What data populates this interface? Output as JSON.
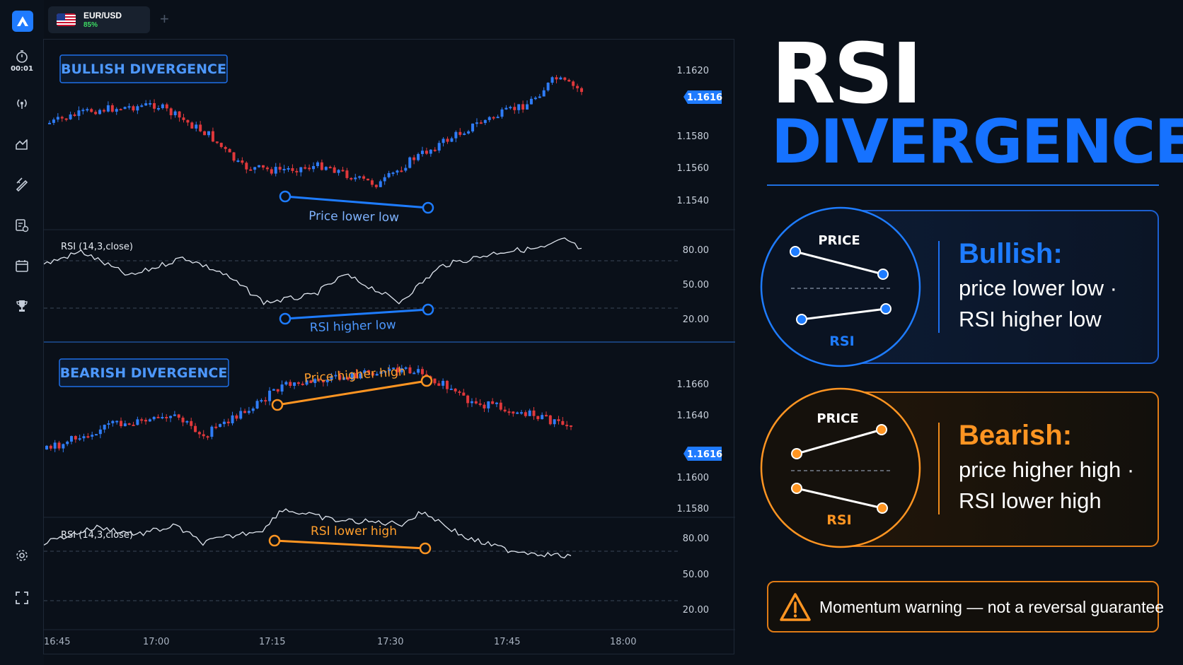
{
  "app": {
    "timer": "00:01",
    "tab": {
      "asset": "EUR/USD",
      "payout": "85%",
      "add_label": "+"
    }
  },
  "colors": {
    "bull": "#1e7cff",
    "bear": "#ff9522",
    "candle_up": "#2f7cf6",
    "candle_down": "#e0383b"
  },
  "chart": {
    "time_labels": [
      "16:45",
      "17:00",
      "17:15",
      "17:30",
      "17:45",
      "18:00"
    ],
    "bull_pane": {
      "badge": "BULLISH DIVERGENCE",
      "price_ticks": [
        "1.1620",
        "1.1580",
        "1.1560",
        "1.1540"
      ],
      "current_price": "1.1616",
      "price_annotation": "Price lower low",
      "rsi_label": "RSI (14,3,close)",
      "rsi_ticks": [
        "80.00",
        "50.00",
        "20.00"
      ],
      "rsi_annotation": "RSI higher low"
    },
    "bear_pane": {
      "badge": "BEARISH DIVERGENCE",
      "price_ticks": [
        "1.1660",
        "1.1640",
        "1.1600",
        "1.1580"
      ],
      "current_price": "1.1616",
      "price_annotation": "Price higher high",
      "rsi_label": "RSI (14,3,close)",
      "rsi_ticks": [
        "80.00",
        "50.00",
        "20.00"
      ],
      "rsi_annotation": "RSI lower high"
    }
  },
  "panel": {
    "title": "RSI",
    "subtitle": "DIVERGENCE",
    "bullish": {
      "heading": "Bullish:",
      "line1": "price lower low ·",
      "line2": "RSI higher low",
      "diagram_price": "PRICE",
      "diagram_rsi": "RSI"
    },
    "bearish": {
      "heading": "Bearish:",
      "line1": "price higher high ·",
      "line2": "RSI lower high",
      "diagram_price": "PRICE",
      "diagram_rsi": "RSI"
    },
    "warning": "Momentum warning — not a reversal guarantee"
  }
}
